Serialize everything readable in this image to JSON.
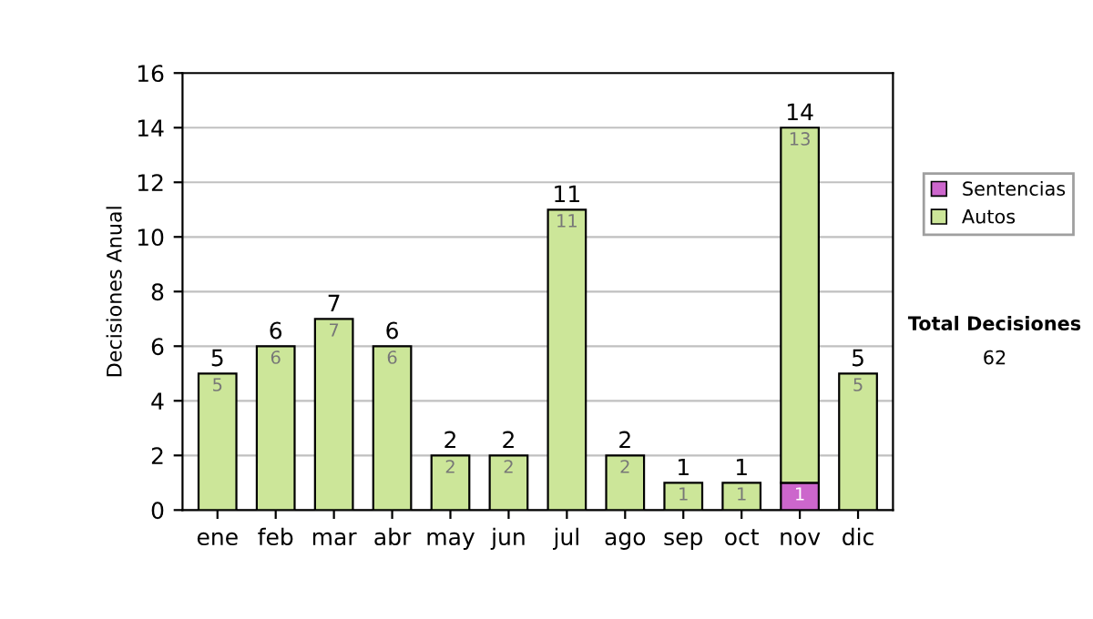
{
  "chart_data": {
    "type": "bar",
    "stacked": true,
    "ylabel": "Decisiones Anual",
    "categories": [
      "ene",
      "feb",
      "mar",
      "abr",
      "may",
      "jun",
      "jul",
      "ago",
      "sep",
      "oct",
      "nov",
      "dic"
    ],
    "series": [
      {
        "name": "Sentencias",
        "color": "#cc66cc",
        "values": [
          0,
          0,
          0,
          0,
          0,
          0,
          0,
          0,
          0,
          0,
          1,
          0
        ],
        "value_labels": [
          null,
          null,
          null,
          null,
          null,
          null,
          null,
          null,
          null,
          null,
          "1",
          null
        ]
      },
      {
        "name": "Autos",
        "color": "#cce699",
        "values": [
          5,
          6,
          7,
          6,
          2,
          2,
          11,
          2,
          1,
          1,
          13,
          5
        ],
        "value_labels": [
          "5",
          "6",
          "7",
          "6",
          "2",
          "2",
          "11",
          "2",
          "1",
          "1",
          "13",
          "5"
        ]
      }
    ],
    "totals": [
      "5",
      "6",
      "7",
      "6",
      "2",
      "2",
      "11",
      "2",
      "1",
      "1",
      "14",
      "5"
    ],
    "ylim": [
      0,
      16
    ],
    "yticks": [
      0,
      2,
      4,
      6,
      8,
      10,
      12,
      14,
      16
    ],
    "grid": "y",
    "legend": "right",
    "annotations": [
      "Total Decisiones",
      "62"
    ]
  }
}
